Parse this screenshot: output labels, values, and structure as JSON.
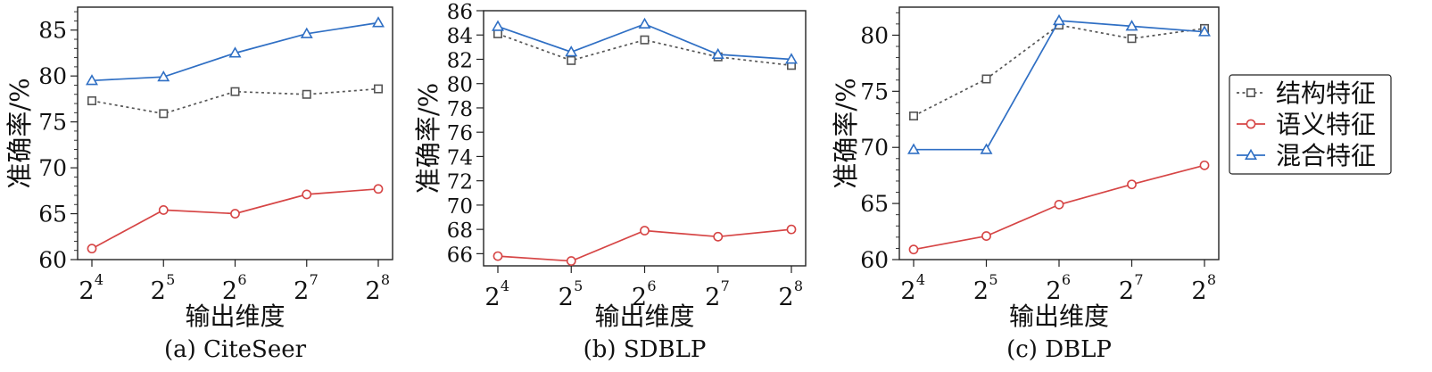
{
  "colors": {
    "structure": "#555555",
    "semantic": "#d64545",
    "hybrid": "#2f6fc4"
  },
  "legend": {
    "placement": "right",
    "entries": [
      {
        "key": "structure",
        "label": "结构特征",
        "marker": "square",
        "line": "dotted"
      },
      {
        "key": "semantic",
        "label": "语义特征",
        "marker": "circle",
        "line": "solid"
      },
      {
        "key": "hybrid",
        "label": "混合特征",
        "marker": "triangle",
        "line": "solid"
      }
    ]
  },
  "chart_data": [
    {
      "type": "line",
      "caption": "(a) CiteSeer",
      "xlabel": "输出维度",
      "ylabel": "准确率/%",
      "categories": [
        {
          "base": "2",
          "exp": "4"
        },
        {
          "base": "2",
          "exp": "5"
        },
        {
          "base": "2",
          "exp": "6"
        },
        {
          "base": "2",
          "exp": "7"
        },
        {
          "base": "2",
          "exp": "8"
        }
      ],
      "ylim": [
        60,
        87.5
      ],
      "yticks": [
        60,
        65,
        70,
        75,
        80,
        85
      ],
      "yminor": [
        61,
        62,
        63,
        64,
        66,
        67,
        68,
        69,
        71,
        72,
        73,
        74,
        76,
        77,
        78,
        79,
        81,
        82,
        83,
        84,
        86,
        87
      ],
      "grid": false,
      "series": [
        {
          "key": "structure",
          "name": "结构特征",
          "values": [
            77.3,
            75.9,
            78.3,
            78.0,
            78.6
          ]
        },
        {
          "key": "semantic",
          "name": "语义特征",
          "values": [
            61.2,
            65.4,
            65.0,
            67.1,
            67.7
          ]
        },
        {
          "key": "hybrid",
          "name": "混合特征",
          "values": [
            79.5,
            79.9,
            82.5,
            84.6,
            85.8
          ]
        }
      ]
    },
    {
      "type": "line",
      "caption": "(b) SDBLP",
      "xlabel": "输出维度",
      "ylabel": "准确率/%",
      "categories": [
        {
          "base": "2",
          "exp": "4"
        },
        {
          "base": "2",
          "exp": "5"
        },
        {
          "base": "2",
          "exp": "6"
        },
        {
          "base": "2",
          "exp": "7"
        },
        {
          "base": "2",
          "exp": "8"
        }
      ],
      "ylim": [
        65,
        86
      ],
      "yticks": [
        66,
        68,
        70,
        72,
        74,
        76,
        78,
        80,
        82,
        84,
        86
      ],
      "yminor": [],
      "grid": false,
      "series": [
        {
          "key": "structure",
          "name": "结构特征",
          "values": [
            84.1,
            81.9,
            83.6,
            82.2,
            81.5
          ]
        },
        {
          "key": "semantic",
          "name": "语义特征",
          "values": [
            65.8,
            65.4,
            67.9,
            67.4,
            68.0
          ]
        },
        {
          "key": "hybrid",
          "name": "混合特征",
          "values": [
            84.7,
            82.6,
            84.9,
            82.4,
            82.0
          ]
        }
      ]
    },
    {
      "type": "line",
      "caption": "(c) DBLP",
      "xlabel": "输出维度",
      "ylabel": "准确率/%",
      "categories": [
        {
          "base": "2",
          "exp": "4"
        },
        {
          "base": "2",
          "exp": "5"
        },
        {
          "base": "2",
          "exp": "6"
        },
        {
          "base": "2",
          "exp": "7"
        },
        {
          "base": "2",
          "exp": "8"
        }
      ],
      "ylim": [
        60,
        82.5
      ],
      "yticks": [
        60,
        65,
        70,
        75,
        80
      ],
      "yminor": [
        61,
        62,
        63,
        64,
        66,
        67,
        68,
        69,
        71,
        72,
        73,
        74,
        76,
        77,
        78,
        79,
        81,
        82
      ],
      "grid": false,
      "series": [
        {
          "key": "structure",
          "name": "结构特征",
          "values": [
            72.8,
            76.1,
            80.9,
            79.7,
            80.6
          ]
        },
        {
          "key": "semantic",
          "name": "语义特征",
          "values": [
            60.9,
            62.1,
            64.9,
            66.7,
            68.4
          ]
        },
        {
          "key": "hybrid",
          "name": "混合特征",
          "values": [
            69.8,
            69.8,
            81.3,
            80.8,
            80.3
          ]
        }
      ]
    }
  ]
}
